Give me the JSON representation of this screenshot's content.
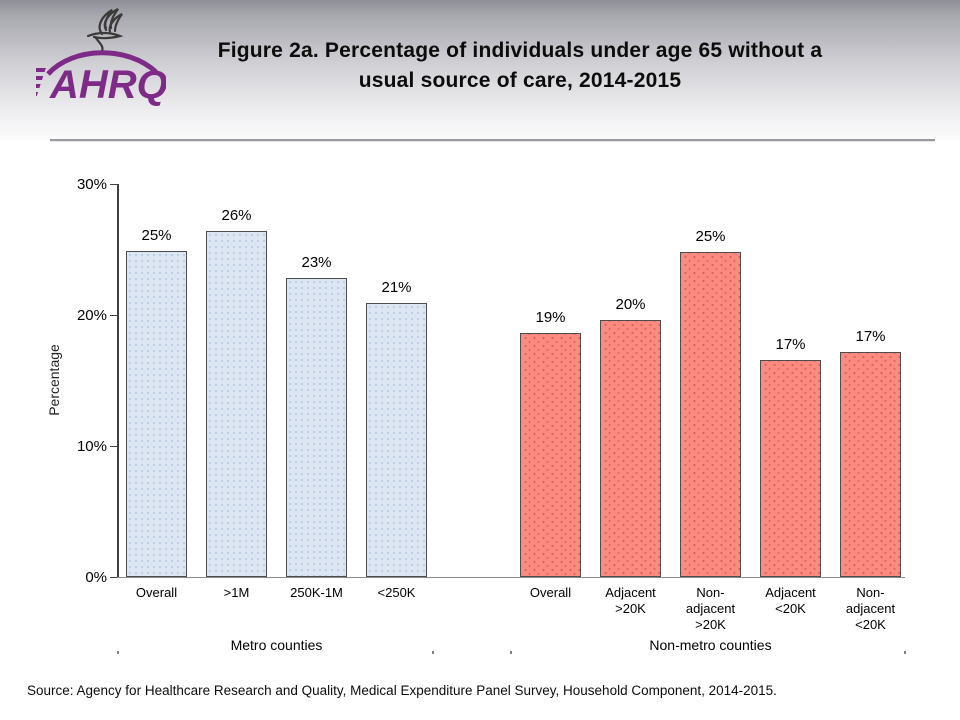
{
  "header": {
    "title_lines": [
      "Figure 2a. Percentage of individuals under age 65 without a",
      "usual source of care, 2014-2015"
    ],
    "logo_text": "AHRQ",
    "logo_color": "#7d2b87",
    "eagle_color": "#3a3a3a"
  },
  "chart_data": {
    "type": "bar",
    "title": "Figure 2a. Percentage of individuals under age 65 without a usual source of care, 2014-2015",
    "xlabel": "",
    "ylabel": "Percentage",
    "ylim": [
      0,
      30
    ],
    "yticks": [
      "0%",
      "10%",
      "20%",
      "30%"
    ],
    "grid": false,
    "legend": false,
    "groups": [
      {
        "name": "Metro counties",
        "fill_color": "#dce6f2",
        "bars": [
          {
            "category": "Overall",
            "value": 24.9,
            "label": "25%"
          },
          {
            "category": ">1M",
            "value": 26.4,
            "label": "26%"
          },
          {
            "category": "250K-1M",
            "value": 22.8,
            "label": "23%"
          },
          {
            "category": "<250K",
            "value": 20.9,
            "label": "21%"
          }
        ]
      },
      {
        "name": "Non-metro counties",
        "fill_color": "#fa8a82",
        "bars": [
          {
            "category": "Overall",
            "value": 18.6,
            "label": "19%"
          },
          {
            "category": "Adjacent >20K",
            "value": 19.6,
            "label": "20%"
          },
          {
            "category": "Non-adjacent >20K",
            "value": 24.8,
            "label": "25%"
          },
          {
            "category": "Adjacent <20K",
            "value": 16.6,
            "label": "17%"
          },
          {
            "category": "Non-adjacent <20K",
            "value": 17.2,
            "label": "17%"
          }
        ]
      }
    ]
  },
  "footer": {
    "source": "Source: Agency for Healthcare Research and Quality, Medical Expenditure Panel Survey, Household Component, 2014-2015."
  }
}
